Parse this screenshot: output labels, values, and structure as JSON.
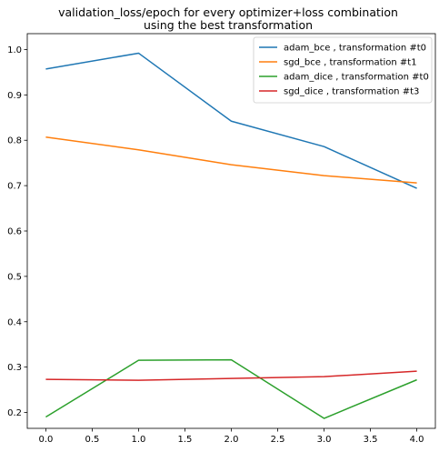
{
  "chart_data": {
    "type": "line",
    "title": "validation_loss/epoch for every optimizer+loss combination\nusing the best transformation",
    "xlabel": "",
    "ylabel": "",
    "x": [
      0,
      1,
      2,
      3,
      4
    ],
    "xlim": [
      -0.2,
      4.2
    ],
    "ylim": [
      0.165,
      1.035
    ],
    "xticks": [
      "0.0",
      "0.5",
      "1.0",
      "1.5",
      "2.0",
      "2.5",
      "3.0",
      "3.5",
      "4.0"
    ],
    "yticks": [
      "0.2",
      "0.3",
      "0.4",
      "0.5",
      "0.6",
      "0.7",
      "0.8",
      "0.9",
      "1.0"
    ],
    "grid": false,
    "legend_position": "top-right",
    "series": [
      {
        "name": "adam_bce , transformation #t0",
        "color": "#1f77b4",
        "values": [
          0.957,
          0.992,
          0.842,
          0.786,
          0.694
        ]
      },
      {
        "name": "sgd_bce , transformation #t1",
        "color": "#ff7f0e",
        "values": [
          0.807,
          0.779,
          0.746,
          0.722,
          0.706
        ]
      },
      {
        "name": "adam_dice , transformation #t0",
        "color": "#2ca02c",
        "values": [
          0.19,
          0.315,
          0.316,
          0.187,
          0.272
        ]
      },
      {
        "name": "sgd_dice , transformation #t3",
        "color": "#d62728",
        "values": [
          0.273,
          0.271,
          0.275,
          0.279,
          0.291
        ]
      }
    ]
  }
}
